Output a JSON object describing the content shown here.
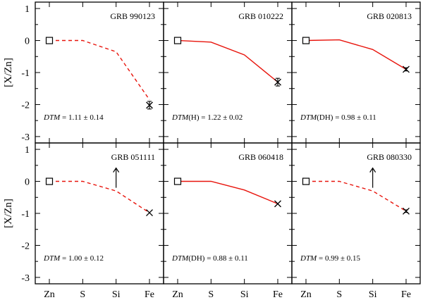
{
  "chart_data": {
    "type": "line",
    "ylabel": "[X/Zn]",
    "xlabel": "",
    "categories": [
      "Zn",
      "S",
      "Si",
      "Fe"
    ],
    "ylim": [
      -3.2,
      1.2
    ],
    "yticks": [
      1,
      0,
      -1,
      -2,
      -3
    ],
    "ytick_labels": [
      "1",
      "0",
      "-1",
      "-2",
      "-3"
    ],
    "colors": {
      "model": "#e8140c",
      "axes": "#000000",
      "markers": "#000000"
    },
    "panels": [
      {
        "title": "GRB 990123",
        "dtm_prefix": "DTM",
        "dtm_suffix": "",
        "dtm_value": "= 1.11 ± 0.14",
        "model_style": "dashed",
        "model": [
          0.0,
          0.0,
          -0.35,
          -1.85
        ],
        "observations": [
          {
            "element": "Zn",
            "value": 0.0,
            "marker": "square",
            "error": 0
          },
          {
            "element": "Fe",
            "value": -2.02,
            "marker": "cross",
            "error": 0.12
          }
        ],
        "limits": []
      },
      {
        "title": "GRB 010222",
        "dtm_prefix": "DTM",
        "dtm_suffix": "(H)",
        "dtm_value": "= 1.22 ± 0.02",
        "model_style": "solid",
        "model": [
          0.0,
          -0.05,
          -0.45,
          -1.3
        ],
        "observations": [
          {
            "element": "Zn",
            "value": 0.0,
            "marker": "square",
            "error": 0
          },
          {
            "element": "Fe",
            "value": -1.3,
            "marker": "cross",
            "error": 0.12
          }
        ],
        "limits": []
      },
      {
        "title": "GRB 020813",
        "dtm_prefix": "DTM",
        "dtm_suffix": "(DH)",
        "dtm_value": "= 0.98 ± 0.11",
        "model_style": "solid",
        "model": [
          0.0,
          0.02,
          -0.28,
          -0.9
        ],
        "observations": [
          {
            "element": "Zn",
            "value": 0.0,
            "marker": "square",
            "error": 0
          },
          {
            "element": "Fe",
            "value": -0.9,
            "marker": "cross",
            "error": 0.05
          }
        ],
        "limits": []
      },
      {
        "title": "GRB 051111",
        "dtm_prefix": "DTM",
        "dtm_suffix": "",
        "dtm_value": "= 1.00 ± 0.12",
        "model_style": "dashed",
        "model": [
          0.0,
          0.0,
          -0.3,
          -0.98
        ],
        "observations": [
          {
            "element": "Zn",
            "value": 0.0,
            "marker": "square",
            "error": 0
          },
          {
            "element": "Fe",
            "value": -0.98,
            "marker": "cross",
            "error": 0
          }
        ],
        "limits": [
          {
            "element": "Si",
            "value": -0.2,
            "direction": "lower"
          }
        ]
      },
      {
        "title": "GRB 060418",
        "dtm_prefix": "DTM",
        "dtm_suffix": "(DH)",
        "dtm_value": "= 0.88 ± 0.11",
        "model_style": "solid",
        "model": [
          0.0,
          0.0,
          -0.27,
          -0.7
        ],
        "observations": [
          {
            "element": "Zn",
            "value": 0.0,
            "marker": "square",
            "error": 0
          },
          {
            "element": "Fe",
            "value": -0.7,
            "marker": "cross",
            "error": 0
          }
        ],
        "limits": []
      },
      {
        "title": "GRB 080330",
        "dtm_prefix": "DTM",
        "dtm_suffix": "",
        "dtm_value": "= 0.99 ± 0.15",
        "model_style": "dashed",
        "model": [
          0.0,
          0.0,
          -0.3,
          -0.93
        ],
        "observations": [
          {
            "element": "Zn",
            "value": 0.0,
            "marker": "square",
            "error": 0
          },
          {
            "element": "Fe",
            "value": -0.93,
            "marker": "cross",
            "error": 0.04
          }
        ],
        "limits": [
          {
            "element": "Si",
            "value": -0.2,
            "direction": "lower"
          }
        ]
      }
    ]
  }
}
